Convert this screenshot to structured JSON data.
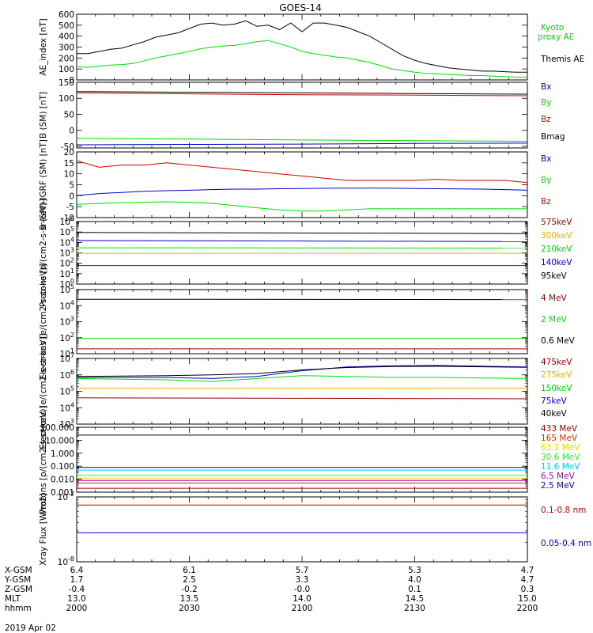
{
  "title": "GOES-14",
  "date_label": "2019 Apr 02",
  "ephemeris": {
    "rows": [
      {
        "label": "X-GSM",
        "values": [
          "6.4",
          "6.1",
          "5.7",
          "5.3",
          "4.7"
        ]
      },
      {
        "label": "Y-GSM",
        "values": [
          "1.7",
          "2.5",
          "3.3",
          "4.0",
          "4.7"
        ]
      },
      {
        "label": "Z-GSM",
        "values": [
          "-0.4",
          "-0.2",
          "-0.0",
          "0.1",
          "0.3"
        ]
      },
      {
        "label": "MLT",
        "values": [
          "13.0",
          "13.5",
          "14.0",
          "14.5",
          "15.0"
        ]
      },
      {
        "label": "hhmm",
        "values": [
          "2000",
          "2030",
          "2100",
          "2130",
          "2200"
        ]
      }
    ]
  },
  "colors": {
    "black": "#000000",
    "red": "#cc0000",
    "darkred": "#990000",
    "green": "#00dd00",
    "blue": "#0000cc",
    "orange": "#ffaa00",
    "yellow": "#dddd00",
    "cyan": "#00ccff",
    "purple": "#aa00aa",
    "lime": "#33ee33"
  },
  "chart_data": [
    {
      "type": "line",
      "ylabel": "AE_index [nT]",
      "ylim": [
        0,
        600
      ],
      "yscale": "linear",
      "yticks": [
        0,
        100,
        200,
        300,
        400,
        500,
        600
      ],
      "ytick_labels": [
        "0",
        "100",
        "200",
        "300",
        "400",
        "500",
        "600"
      ],
      "series": [
        {
          "name": "Kyoto proxy AE",
          "color": "#00dd00",
          "x": [
            2000,
            2005,
            2010,
            2015,
            2020,
            2025,
            2030,
            2035,
            2040,
            2045,
            2050,
            2055,
            2060,
            2065,
            2070,
            2075,
            2080,
            2085,
            2090,
            2095,
            2100,
            2105,
            2110,
            2115,
            2120,
            2125,
            2130,
            2135,
            2140,
            2145,
            2150,
            2155,
            2160,
            2165,
            2170,
            2175,
            2180,
            2185,
            2190,
            2195,
            2200
          ],
          "y": [
            120,
            115,
            125,
            135,
            140,
            150,
            175,
            200,
            220,
            240,
            260,
            285,
            300,
            310,
            315,
            330,
            350,
            360,
            330,
            300,
            260,
            240,
            225,
            210,
            200,
            180,
            160,
            130,
            100,
            85,
            70,
            60,
            55,
            50,
            45,
            40,
            40,
            35,
            30,
            25,
            25
          ]
        },
        {
          "name": "Themis AE",
          "color": "#000000",
          "x": [
            2000,
            2005,
            2010,
            2015,
            2020,
            2025,
            2030,
            2035,
            2040,
            2045,
            2050,
            2055,
            2060,
            2065,
            2070,
            2075,
            2080,
            2085,
            2090,
            2095,
            2100,
            2105,
            2110,
            2115,
            2120,
            2125,
            2130,
            2135,
            2140,
            2145,
            2150,
            2155,
            2160,
            2165,
            2170,
            2175,
            2180,
            2185,
            2190,
            2195,
            2200
          ],
          "y": [
            240,
            240,
            260,
            280,
            290,
            320,
            350,
            390,
            410,
            430,
            470,
            510,
            520,
            500,
            510,
            540,
            490,
            500,
            460,
            520,
            440,
            520,
            520,
            500,
            480,
            440,
            400,
            340,
            280,
            220,
            180,
            150,
            130,
            110,
            100,
            90,
            80,
            80,
            75,
            70,
            70
          ]
        }
      ]
    },
    {
      "type": "line",
      "ylabel": "B (SM) [nT]",
      "ylim": [
        -55,
        150
      ],
      "yscale": "linear",
      "yticks": [
        -50,
        0,
        50,
        100,
        150
      ],
      "ytick_labels": [
        "-50",
        "0",
        "50",
        "100",
        "150"
      ],
      "series": [
        {
          "name": "Bx",
          "color": "#0000cc",
          "x": [
            2000,
            2050,
            2100,
            2150,
            2200
          ],
          "y": [
            -45,
            -44,
            -43,
            -41,
            -40
          ]
        },
        {
          "name": "By",
          "color": "#00dd00",
          "x": [
            2000,
            2050,
            2100,
            2150,
            2200
          ],
          "y": [
            -25,
            -27,
            -30,
            -32,
            -34
          ]
        },
        {
          "name": "Bz",
          "color": "#cc0000",
          "x": [
            2000,
            2050,
            2100,
            2150,
            2200
          ],
          "y": [
            117,
            114,
            111,
            110,
            108
          ]
        },
        {
          "name": "Bmag",
          "color": "#000000",
          "x": [
            2000,
            2050,
            2100,
            2150,
            2200
          ],
          "y": [
            121,
            119,
            117,
            115,
            113
          ]
        }
      ]
    },
    {
      "type": "line",
      "ylabel": "B (SM)-IGRF (SM) [nT]",
      "ylim": [
        -10,
        20
      ],
      "yscale": "linear",
      "yticks": [
        -10,
        -5,
        0,
        5,
        10,
        15,
        20
      ],
      "ytick_labels": [
        "-10",
        "-5",
        "0",
        "5",
        "10",
        "15",
        "20"
      ],
      "series": [
        {
          "name": "Bx",
          "color": "#0000cc",
          "x": [
            2000,
            2010,
            2020,
            2030,
            2040,
            2050,
            2060,
            2070,
            2080,
            2090,
            2100,
            2110,
            2120,
            2130,
            2140,
            2150,
            2160,
            2170,
            2180,
            2190,
            2200
          ],
          "y": [
            0,
            1,
            1.5,
            2,
            2.3,
            2.5,
            2.8,
            3,
            3,
            3.2,
            3.3,
            3.4,
            3.4,
            3.5,
            3.4,
            3.3,
            3.2,
            3.1,
            3,
            2.8,
            2.5
          ]
        },
        {
          "name": "By",
          "color": "#00dd00",
          "x": [
            2000,
            2010,
            2020,
            2030,
            2040,
            2050,
            2060,
            2070,
            2080,
            2090,
            2100,
            2110,
            2120,
            2130,
            2140,
            2150,
            2160,
            2170,
            2180,
            2190,
            2200
          ],
          "y": [
            -4,
            -3.5,
            -3.2,
            -3,
            -2.8,
            -3,
            -3.5,
            -4.5,
            -5.5,
            -6.5,
            -7,
            -7,
            -6.5,
            -6,
            -6,
            -6,
            -6,
            -6,
            -6,
            -6,
            -6
          ]
        },
        {
          "name": "Bz",
          "color": "#cc0000",
          "x": [
            2000,
            2010,
            2020,
            2030,
            2040,
            2050,
            2060,
            2070,
            2080,
            2090,
            2100,
            2110,
            2120,
            2130,
            2140,
            2150,
            2160,
            2170,
            2180,
            2190,
            2200
          ],
          "y": [
            16,
            13,
            14,
            14,
            15,
            14,
            13,
            12,
            11,
            10,
            9,
            8,
            7,
            7,
            7,
            7,
            7.5,
            7,
            7,
            7,
            6
          ]
        }
      ]
    },
    {
      "type": "line",
      "ylabel": "Protons [p/(cm2-s-sr-keV)]",
      "ylim": [
        1,
        1000000
      ],
      "yscale": "log",
      "yticks": [
        1,
        10,
        100,
        1000,
        10000,
        100000,
        1000000
      ],
      "ytick_labels": [
        "10^0",
        "10^1",
        "10^2",
        "10^3",
        "10^4",
        "10^5",
        "10^6"
      ],
      "series": [
        {
          "name": "575keV",
          "color": "#990000",
          "x": [
            2000,
            2200
          ],
          "y": [
            60,
            60
          ]
        },
        {
          "name": "300keV",
          "color": "#ffaa00",
          "x": [
            2000,
            2200
          ],
          "y": [
            900,
            900
          ]
        },
        {
          "name": "210keV",
          "color": "#00dd00",
          "x": [
            2000,
            2200
          ],
          "y": [
            3000,
            2800
          ]
        },
        {
          "name": "140keV",
          "color": "#0000cc",
          "x": [
            2000,
            2200
          ],
          "y": [
            15000,
            12000
          ]
        },
        {
          "name": "95keV",
          "color": "#000000",
          "x": [
            2000,
            2200
          ],
          "y": [
            90000,
            70000
          ]
        }
      ]
    },
    {
      "type": "line",
      "ylabel": "Electrons [e/(cm2-s-sr-keV)]",
      "ylim": [
        10,
        100000
      ],
      "yscale": "log",
      "yticks": [
        10,
        100,
        1000,
        10000,
        100000
      ],
      "ytick_labels": [
        "10^1",
        "10^2",
        "10^3",
        "10^4",
        "10^5"
      ],
      "series": [
        {
          "name": "4 MeV",
          "color": "#990000",
          "x": [
            2000,
            2200
          ],
          "y": [
            20,
            20
          ]
        },
        {
          "name": "2 MeV",
          "color": "#00dd00",
          "x": [
            2000,
            2200
          ],
          "y": [
            90,
            90
          ]
        },
        {
          "name": "0.6 MeV",
          "color": "#000000",
          "x": [
            2000,
            2200
          ],
          "y": [
            25000,
            24000
          ]
        }
      ]
    },
    {
      "type": "line",
      "ylabel": "Electrons [e/(cm2-s-sr-keV)]",
      "ylim": [
        1000,
        10000000
      ],
      "yscale": "log",
      "yticks": [
        1000,
        10000,
        100000,
        1000000,
        10000000
      ],
      "ytick_labels": [
        "10^3",
        "10^4",
        "10^5",
        "10^6",
        "10^7"
      ],
      "series": [
        {
          "name": "475keV",
          "color": "#990000",
          "x": [
            2000,
            2200
          ],
          "y": [
            40000,
            35000
          ]
        },
        {
          "name": "275keV",
          "color": "#ffaa00",
          "x": [
            2000,
            2200
          ],
          "y": [
            150000,
            150000
          ]
        },
        {
          "name": "150keV",
          "color": "#00dd00",
          "x": [
            2000,
            2040,
            2060,
            2080,
            2100,
            2120,
            2140,
            2160,
            2200
          ],
          "y": [
            600000,
            500000,
            400000,
            600000,
            900000,
            800000,
            700000,
            700000,
            600000
          ]
        },
        {
          "name": "75keV",
          "color": "#0000cc",
          "x": [
            2000,
            2040,
            2060,
            2080,
            2100,
            2120,
            2140,
            2160,
            2200
          ],
          "y": [
            700000,
            700000,
            600000,
            800000,
            1800000,
            3000000,
            3600000,
            3800000,
            3000000
          ]
        },
        {
          "name": "40keV",
          "color": "#000000",
          "x": [
            2000,
            2040,
            2060,
            2080,
            2100,
            2120,
            2140,
            2160,
            2200
          ],
          "y": [
            800000,
            900000,
            1000000,
            1200000,
            2000000,
            2800000,
            3200000,
            3300000,
            2900000
          ]
        }
      ]
    },
    {
      "type": "line",
      "ylabel": "Protons [p/(cm2-s-sr-keV)]",
      "ylim": [
        0.001,
        100
      ],
      "yscale": "log",
      "yticks": [
        0.001,
        0.01,
        0.1,
        1,
        10,
        100
      ],
      "ytick_labels": [
        "0.001",
        "0.010",
        "0.100",
        "1.000",
        "10.000",
        "100.000"
      ],
      "series": [
        {
          "name": "433 MeV",
          "color": "#990000",
          "x": [
            2000,
            2200
          ],
          "y": [
            0.002,
            0.002
          ]
        },
        {
          "name": "165 MeV",
          "color": "#cc3300",
          "x": [
            2000,
            2200
          ],
          "y": [
            0.005,
            0.005
          ]
        },
        {
          "name": "63.1 MeV",
          "color": "#dddd00",
          "x": [
            2000,
            2200
          ],
          "y": [
            0.012,
            0.012
          ]
        },
        {
          "name": "30.6 MeV",
          "color": "#33ee33",
          "x": [
            2000,
            2200
          ],
          "y": [
            0.02,
            0.02
          ]
        },
        {
          "name": "11.6 MeV",
          "color": "#00ccff",
          "x": [
            2000,
            2200
          ],
          "y": [
            0.05,
            0.05
          ]
        },
        {
          "name": "6.5 MeV",
          "color": "#aa00aa",
          "x": [
            2000,
            2200
          ],
          "y": [
            0.008,
            0.008
          ]
        },
        {
          "name": "2.5 MeV",
          "color": "#0000cc",
          "x": [
            2000,
            2200
          ],
          "y": [
            0.08,
            0.08
          ]
        },
        {
          "name": "",
          "color": "#000000",
          "x": [
            2000,
            2200
          ],
          "y": [
            25,
            25
          ]
        }
      ]
    },
    {
      "type": "line",
      "ylabel": "Xray Flux [W/m2]",
      "ylim": [
        1e-08,
        1e-07
      ],
      "yscale": "log",
      "yticks": [
        1e-08,
        1e-07
      ],
      "ytick_labels": [
        "10^-8",
        "10^-7"
      ],
      "series": [
        {
          "name": "0.1-0.8 nm",
          "color": "#cc0000",
          "x": [
            2000,
            2200
          ],
          "y": [
            7.5e-08,
            7.5e-08
          ]
        },
        {
          "name": "0.05-0.4 nm",
          "color": "#0000cc",
          "x": [
            2000,
            2200
          ],
          "y": [
            2.8e-08,
            2.8e-08
          ]
        }
      ]
    }
  ]
}
